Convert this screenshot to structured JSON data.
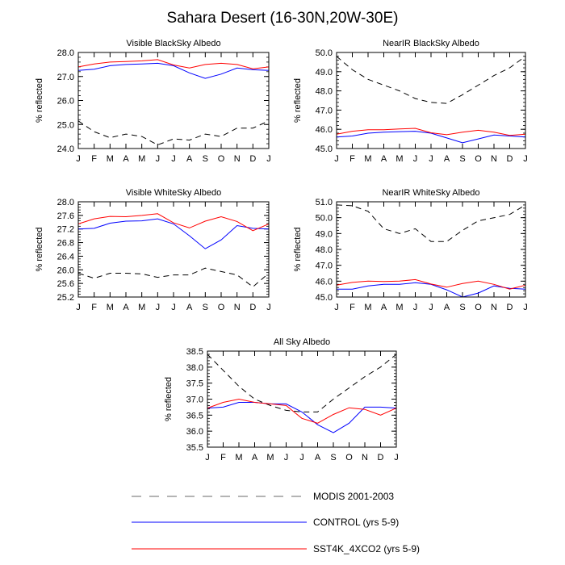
{
  "title": "Sahara Desert (16-30N,20W-30E)",
  "legend": {
    "placement": "bottom",
    "entries": [
      {
        "label": "MODIS 2001-2003",
        "color": "#000000",
        "style": "dashed"
      },
      {
        "label": "CONTROL (yrs 5-9)",
        "color": "#0000ff",
        "style": "solid"
      },
      {
        "label": "SST4K_4XCO2 (yrs 5-9)",
        "color": "#ff0000",
        "style": "solid"
      }
    ]
  },
  "chart_data": [
    {
      "type": "line",
      "title": "Visible BlackSky Albedo",
      "ylabel": "% reflected",
      "categories": [
        "J",
        "F",
        "M",
        "A",
        "M",
        "J",
        "J",
        "A",
        "S",
        "O",
        "N",
        "D",
        "J"
      ],
      "ylim": [
        24.0,
        28.0
      ],
      "yticks": [
        "24.0",
        "25.0",
        "26.0",
        "27.0",
        "28.0"
      ],
      "series": [
        {
          "name": "MODIS 2001-2003",
          "color": "#000000",
          "dashed": true,
          "values": [
            25.15,
            24.7,
            24.45,
            24.6,
            24.5,
            24.15,
            24.4,
            24.35,
            24.6,
            24.5,
            24.85,
            24.85,
            25.15
          ]
        },
        {
          "name": "CONTROL (yrs 5-9)",
          "color": "#0000ff",
          "dashed": false,
          "values": [
            27.25,
            27.3,
            27.45,
            27.5,
            27.52,
            27.55,
            27.45,
            27.15,
            26.92,
            27.1,
            27.35,
            27.28,
            27.25
          ]
        },
        {
          "name": "SST4K_4XCO2 (yrs 5-9)",
          "color": "#ff0000",
          "dashed": false,
          "values": [
            27.4,
            27.52,
            27.6,
            27.62,
            27.65,
            27.7,
            27.48,
            27.35,
            27.5,
            27.55,
            27.5,
            27.32,
            27.4
          ]
        }
      ]
    },
    {
      "type": "line",
      "title": "NearIR BlackSky Albedo",
      "ylabel": "% reflected",
      "categories": [
        "J",
        "F",
        "M",
        "A",
        "M",
        "J",
        "J",
        "A",
        "S",
        "O",
        "N",
        "D",
        "J"
      ],
      "ylim": [
        45.0,
        50.0
      ],
      "yticks": [
        "45.0",
        "46.0",
        "47.0",
        "48.0",
        "49.0",
        "50.0"
      ],
      "series": [
        {
          "name": "MODIS 2001-2003",
          "color": "#000000",
          "dashed": true,
          "values": [
            49.8,
            49.1,
            48.6,
            48.3,
            48.0,
            47.6,
            47.4,
            47.35,
            47.8,
            48.3,
            48.8,
            49.2,
            49.8
          ]
        },
        {
          "name": "CONTROL (yrs 5-9)",
          "color": "#0000ff",
          "dashed": false,
          "values": [
            45.6,
            45.65,
            45.8,
            45.85,
            45.88,
            45.9,
            45.8,
            45.55,
            45.3,
            45.5,
            45.7,
            45.65,
            45.6
          ]
        },
        {
          "name": "SST4K_4XCO2 (yrs 5-9)",
          "color": "#ff0000",
          "dashed": false,
          "values": [
            45.75,
            45.9,
            45.98,
            45.98,
            46.02,
            46.05,
            45.82,
            45.72,
            45.85,
            45.95,
            45.85,
            45.68,
            45.75
          ]
        }
      ]
    },
    {
      "type": "line",
      "title": "Visible WhiteSky Albedo",
      "ylabel": "% reflected",
      "categories": [
        "J",
        "F",
        "M",
        "A",
        "M",
        "J",
        "J",
        "A",
        "S",
        "O",
        "N",
        "D",
        "J"
      ],
      "ylim": [
        25.2,
        28.0
      ],
      "yticks": [
        "25.2",
        "25.6",
        "26.0",
        "26.4",
        "26.8",
        "27.2",
        "27.6",
        "28.0"
      ],
      "series": [
        {
          "name": "MODIS 2001-2003",
          "color": "#000000",
          "dashed": true,
          "values": [
            25.9,
            25.75,
            25.9,
            25.9,
            25.88,
            25.78,
            25.85,
            25.85,
            26.05,
            25.95,
            25.85,
            25.5,
            25.9
          ]
        },
        {
          "name": "CONTROL (yrs 5-9)",
          "color": "#0000ff",
          "dashed": false,
          "values": [
            27.2,
            27.22,
            27.37,
            27.43,
            27.44,
            27.5,
            27.35,
            27.0,
            26.62,
            26.88,
            27.3,
            27.22,
            27.2
          ]
        },
        {
          "name": "SST4K_4XCO2 (yrs 5-9)",
          "color": "#ff0000",
          "dashed": false,
          "values": [
            27.35,
            27.5,
            27.57,
            27.56,
            27.6,
            27.65,
            27.38,
            27.23,
            27.43,
            27.56,
            27.42,
            27.15,
            27.35
          ]
        }
      ]
    },
    {
      "type": "line",
      "title": "NearIR WhiteSky Albedo",
      "ylabel": "% reflected",
      "categories": [
        "J",
        "F",
        "M",
        "A",
        "M",
        "J",
        "J",
        "A",
        "S",
        "O",
        "N",
        "D",
        "J"
      ],
      "ylim": [
        45.0,
        51.0
      ],
      "yticks": [
        "45.0",
        "46.0",
        "47.0",
        "48.0",
        "49.0",
        "50.0",
        "51.0"
      ],
      "series": [
        {
          "name": "MODIS 2001-2003",
          "color": "#000000",
          "dashed": true,
          "values": [
            50.8,
            50.75,
            50.4,
            49.3,
            49.0,
            49.3,
            48.5,
            48.5,
            49.2,
            49.8,
            50.0,
            50.2,
            50.8
          ]
        },
        {
          "name": "CONTROL (yrs 5-9)",
          "color": "#0000ff",
          "dashed": false,
          "values": [
            45.5,
            45.5,
            45.7,
            45.8,
            45.8,
            45.9,
            45.8,
            45.45,
            45.0,
            45.25,
            45.7,
            45.55,
            45.5
          ]
        },
        {
          "name": "SST4K_4XCO2 (yrs 5-9)",
          "color": "#ff0000",
          "dashed": false,
          "values": [
            45.75,
            45.92,
            46.0,
            45.98,
            46.0,
            46.1,
            45.82,
            45.62,
            45.85,
            46.0,
            45.8,
            45.5,
            45.75
          ]
        }
      ]
    },
    {
      "type": "line",
      "title": "All Sky Albedo",
      "ylabel": "% reflected",
      "categories": [
        "J",
        "F",
        "M",
        "A",
        "M",
        "J",
        "J",
        "A",
        "S",
        "O",
        "N",
        "D",
        "J"
      ],
      "ylim": [
        35.5,
        38.5
      ],
      "yticks": [
        "35.5",
        "36.0",
        "36.5",
        "37.0",
        "37.5",
        "38.0",
        "38.5"
      ],
      "series": [
        {
          "name": "MODIS 2001-2003",
          "color": "#000000",
          "dashed": true,
          "values": [
            38.4,
            37.9,
            37.4,
            37.0,
            36.8,
            36.65,
            36.6,
            36.6,
            37.0,
            37.35,
            37.7,
            38.0,
            38.4
          ]
        },
        {
          "name": "CONTROL (yrs 5-9)",
          "color": "#0000ff",
          "dashed": false,
          "values": [
            36.72,
            36.75,
            36.9,
            36.9,
            36.85,
            36.85,
            36.6,
            36.2,
            35.95,
            36.25,
            36.75,
            36.75,
            36.72
          ]
        },
        {
          "name": "SST4K_4XCO2 (yrs 5-9)",
          "color": "#ff0000",
          "dashed": false,
          "values": [
            36.72,
            36.9,
            37.0,
            36.9,
            36.85,
            36.8,
            36.4,
            36.25,
            36.52,
            36.73,
            36.68,
            36.5,
            36.72
          ]
        }
      ]
    }
  ]
}
